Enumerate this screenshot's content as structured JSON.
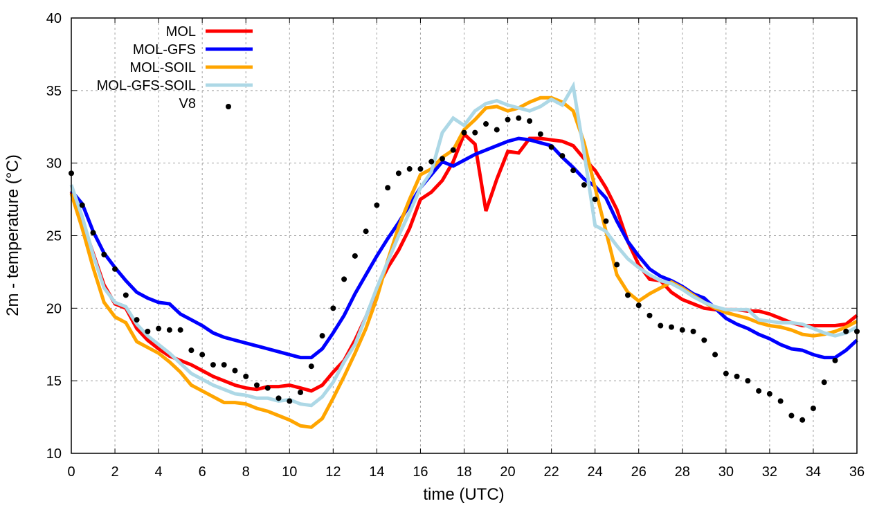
{
  "chart_data": {
    "type": "line",
    "title": "",
    "xlabel": "time (UTC)",
    "ylabel": "2m - temperature (°C)",
    "xlim": [
      0,
      36
    ],
    "ylim": [
      10,
      40
    ],
    "xticks": [
      "0",
      "2",
      "4",
      "6",
      "8",
      "10",
      "12",
      "14",
      "16",
      "18",
      "20",
      "22",
      "24",
      "26",
      "28",
      "30",
      "32",
      "34",
      "36"
    ],
    "yticks": [
      "10",
      "15",
      "20",
      "25",
      "30",
      "35",
      "40"
    ],
    "grid": true,
    "legend_position": "top-left",
    "x": [
      0,
      0.5,
      1,
      1.5,
      2,
      2.5,
      3,
      3.5,
      4,
      4.5,
      5,
      5.5,
      6,
      6.5,
      7,
      7.5,
      8,
      8.5,
      9,
      9.5,
      10,
      10.5,
      11,
      11.5,
      12,
      12.5,
      13,
      13.5,
      14,
      14.5,
      15,
      15.5,
      16,
      16.5,
      17,
      17.5,
      18,
      18.5,
      19,
      19.5,
      20,
      20.5,
      21,
      21.5,
      22,
      22.5,
      23,
      23.5,
      24,
      24.5,
      25,
      25.5,
      26,
      26.5,
      27,
      27.5,
      28,
      28.5,
      29,
      29.5,
      30,
      30.5,
      31,
      31.5,
      32,
      32.5,
      33,
      33.5,
      34,
      34.5,
      35,
      35.5,
      36
    ],
    "series": [
      {
        "name": "MOL",
        "color": "#ff0000",
        "style": "line",
        "values": [
          28.0,
          26.0,
          23.8,
          21.6,
          20.3,
          20.0,
          18.6,
          17.8,
          17.2,
          16.7,
          16.4,
          16.1,
          15.7,
          15.3,
          15.0,
          14.7,
          14.5,
          14.4,
          14.6,
          14.6,
          14.7,
          14.5,
          14.3,
          14.7,
          15.6,
          16.4,
          17.8,
          19.4,
          21.3,
          22.8,
          24.0,
          25.5,
          27.5,
          28.0,
          28.8,
          30.1,
          32.0,
          31.3,
          26.7,
          28.9,
          30.8,
          30.7,
          31.7,
          31.7,
          31.6,
          31.5,
          31.2,
          30.3,
          29.5,
          28.3,
          26.8,
          24.6,
          23.0,
          22.0,
          21.9,
          21.1,
          20.6,
          20.3,
          20.0,
          19.9,
          19.9,
          19.9,
          19.8,
          19.8,
          19.6,
          19.3,
          19.0,
          18.8,
          18.8,
          18.8,
          18.8,
          18.9,
          19.5
        ]
      },
      {
        "name": "MOL-GFS",
        "color": "#0000ff",
        "style": "line",
        "values": [
          28.1,
          27.2,
          25.3,
          23.8,
          22.8,
          21.9,
          21.1,
          20.7,
          20.4,
          20.3,
          19.6,
          19.2,
          18.8,
          18.3,
          18.0,
          17.8,
          17.6,
          17.4,
          17.2,
          17.0,
          16.8,
          16.6,
          16.6,
          17.2,
          18.3,
          19.5,
          21.0,
          22.3,
          23.6,
          24.8,
          25.9,
          27.1,
          28.3,
          29.2,
          30.1,
          29.8,
          30.2,
          30.6,
          30.9,
          31.2,
          31.5,
          31.7,
          31.6,
          31.4,
          31.2,
          30.4,
          29.7,
          28.9,
          28.4,
          27.6,
          26.0,
          24.6,
          23.6,
          22.7,
          22.2,
          21.9,
          21.5,
          21.0,
          20.7,
          20.0,
          19.3,
          18.9,
          18.6,
          18.2,
          17.9,
          17.5,
          17.2,
          17.1,
          16.8,
          16.6,
          16.6,
          17.1,
          17.8
        ]
      },
      {
        "name": "MOL-SOIL",
        "color": "#ffa500",
        "style": "line",
        "values": [
          27.9,
          25.5,
          22.8,
          20.4,
          19.4,
          19.0,
          17.7,
          17.3,
          16.9,
          16.3,
          15.6,
          14.7,
          14.3,
          13.9,
          13.5,
          13.5,
          13.4,
          13.1,
          12.9,
          12.6,
          12.3,
          11.9,
          11.8,
          12.4,
          13.8,
          15.3,
          16.9,
          18.6,
          20.7,
          23.3,
          25.6,
          27.5,
          29.2,
          29.6,
          30.4,
          30.9,
          32.3,
          33.0,
          33.8,
          33.9,
          33.6,
          33.8,
          34.2,
          34.5,
          34.5,
          34.2,
          33.6,
          31.4,
          28.3,
          25.3,
          22.3,
          21.1,
          20.5,
          21.0,
          21.4,
          21.8,
          21.4,
          20.9,
          20.4,
          20.0,
          19.7,
          19.5,
          19.3,
          19.0,
          18.8,
          18.7,
          18.5,
          18.2,
          18.1,
          18.2,
          18.4,
          18.7,
          19.1
        ]
      },
      {
        "name": "MOL-GFS-SOIL",
        "color": "#add8e6",
        "style": "line",
        "values": [
          28.5,
          26.3,
          23.7,
          21.4,
          20.4,
          20.1,
          18.9,
          18.1,
          17.5,
          16.9,
          16.2,
          15.5,
          15.1,
          14.7,
          14.4,
          14.1,
          14.0,
          13.8,
          13.8,
          13.6,
          13.7,
          13.4,
          13.3,
          13.9,
          14.9,
          16.3,
          17.5,
          19.4,
          21.4,
          23.2,
          25.0,
          26.6,
          28.3,
          29.4,
          32.1,
          33.1,
          32.6,
          33.6,
          34.1,
          34.3,
          34.0,
          33.8,
          33.6,
          33.9,
          34.4,
          34.0,
          35.3,
          30.7,
          25.7,
          25.3,
          24.3,
          23.4,
          22.8,
          22.3,
          21.9,
          21.7,
          21.3,
          20.8,
          20.4,
          20.1,
          19.9,
          19.9,
          19.9,
          19.2,
          19.1,
          19.0,
          19.0,
          18.9,
          18.6,
          18.3,
          18.1,
          18.3,
          18.7
        ]
      },
      {
        "name": "V8",
        "color": "#000000",
        "style": "points",
        "values": [
          29.3,
          27.1,
          25.2,
          23.7,
          22.7,
          20.9,
          19.2,
          18.4,
          18.6,
          18.5,
          18.5,
          17.1,
          16.8,
          16.1,
          16.1,
          15.7,
          15.3,
          14.7,
          14.5,
          13.8,
          13.6,
          14.2,
          16.0,
          18.1,
          20.0,
          22.0,
          23.6,
          25.3,
          27.1,
          28.3,
          29.3,
          29.6,
          29.6,
          30.1,
          30.3,
          30.9,
          32.1,
          32.1,
          32.7,
          32.3,
          33.0,
          33.1,
          32.9,
          32.0,
          31.1,
          30.5,
          29.5,
          28.5,
          27.5,
          26.0,
          23.0,
          20.9,
          20.2,
          19.5,
          18.8,
          18.7,
          18.5,
          18.4,
          17.8,
          16.8,
          15.5,
          15.3,
          15.0,
          14.3,
          14.1,
          13.6,
          12.6,
          12.3,
          13.1,
          14.9,
          16.4,
          18.4,
          18.4
        ]
      }
    ]
  }
}
